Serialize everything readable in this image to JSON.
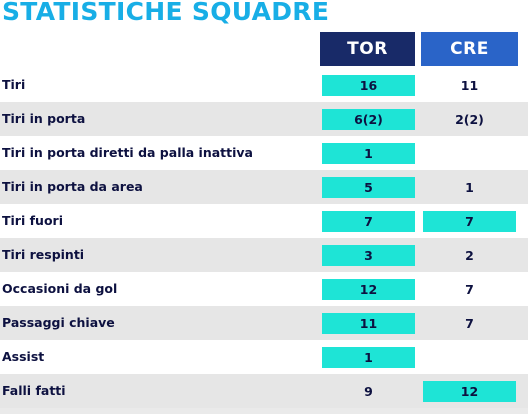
{
  "title": "STATISTICHE SQUADRE",
  "teams": {
    "home": "TOR",
    "away": "CRE"
  },
  "colors": {
    "title": "#18aee6",
    "home_header": "#182a68",
    "away_header": "#2a64c8",
    "highlight": "#1ee4d6",
    "text": "#0d1140",
    "alt_row": "#e6e6e6"
  },
  "rows": [
    {
      "label": "Tiri",
      "tor": "16",
      "cre": "11",
      "tor_hl": true,
      "cre_hl": false
    },
    {
      "label": "Tiri in porta",
      "tor": "6(2)",
      "cre": "2(2)",
      "tor_hl": true,
      "cre_hl": false
    },
    {
      "label": "Tiri in porta diretti da palla inattiva",
      "tor": "1",
      "cre": "",
      "tor_hl": true,
      "cre_hl": false
    },
    {
      "label": "Tiri in porta da area",
      "tor": "5",
      "cre": "1",
      "tor_hl": true,
      "cre_hl": false
    },
    {
      "label": "Tiri fuori",
      "tor": "7",
      "cre": "7",
      "tor_hl": true,
      "cre_hl": true
    },
    {
      "label": "Tiri respinti",
      "tor": "3",
      "cre": "2",
      "tor_hl": true,
      "cre_hl": false
    },
    {
      "label": "Occasioni da gol",
      "tor": "12",
      "cre": "7",
      "tor_hl": true,
      "cre_hl": false
    },
    {
      "label": "Passaggi chiave",
      "tor": "11",
      "cre": "7",
      "tor_hl": true,
      "cre_hl": false
    },
    {
      "label": "Assist",
      "tor": "1",
      "cre": "",
      "tor_hl": true,
      "cre_hl": false
    },
    {
      "label": "Falli fatti",
      "tor": "9",
      "cre": "12",
      "tor_hl": false,
      "cre_hl": true
    }
  ]
}
